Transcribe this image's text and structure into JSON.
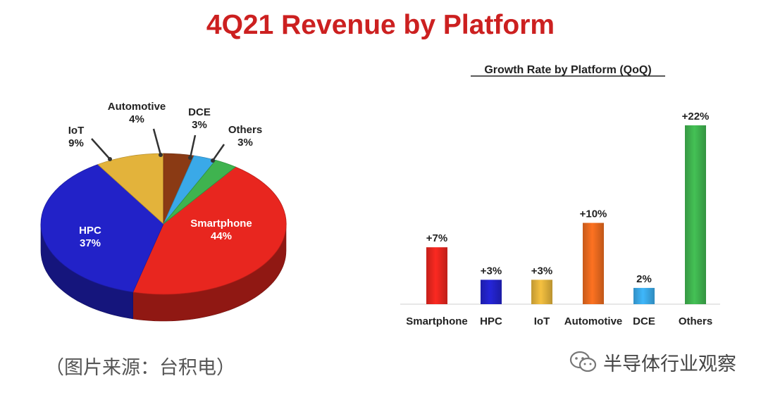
{
  "title": "4Q21 Revenue by Platform",
  "source_caption": "（图片来源：台积电）",
  "watermark": {
    "text": "半导体行业观察",
    "icon": "wechat-icon"
  },
  "colors": {
    "title": "#cc2020",
    "smartphone": "#e8261f",
    "hpc": "#2222c8",
    "iot": "#e3b33b",
    "automotive": "#ea6a1f",
    "dce": "#3aa9e8",
    "others": "#3fb34f",
    "automotive_pie": "#8a3a14"
  },
  "chart_data": [
    {
      "type": "pie",
      "slices": [
        {
          "name": "Smartphone",
          "value": 44,
          "label": "44%"
        },
        {
          "name": "HPC",
          "value": 37,
          "label": "37%"
        },
        {
          "name": "IoT",
          "value": 9,
          "label": "9%"
        },
        {
          "name": "Automotive",
          "value": 4,
          "label": "4%"
        },
        {
          "name": "DCE",
          "value": 3,
          "label": "3%"
        },
        {
          "name": "Others",
          "value": 3,
          "label": "3%"
        }
      ]
    },
    {
      "type": "bar",
      "title": "Growth Rate by Platform (QoQ)",
      "categories": [
        "Smartphone",
        "HPC",
        "IoT",
        "Automotive",
        "DCE",
        "Others"
      ],
      "values": [
        7,
        3,
        3,
        10,
        2,
        22
      ],
      "labels": [
        "+7%",
        "+3%",
        "+3%",
        "+10%",
        "2%",
        "+22%"
      ],
      "ylim": [
        0,
        22
      ]
    }
  ]
}
